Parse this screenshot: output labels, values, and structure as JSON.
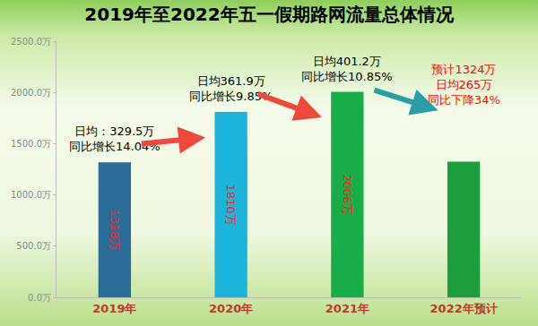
{
  "chart_data": {
    "type": "bar",
    "title": "2019年至2022年五一假期路网流量总体情况",
    "categories": [
      "2019年",
      "2020年",
      "2021年",
      "2022年预计"
    ],
    "values": [
      1318,
      1810,
      2006,
      1324
    ],
    "value_labels": [
      "1318万",
      "1810万",
      "2006万",
      null
    ],
    "colors": [
      "#2b6d99",
      "#1db4dc",
      "#19ad49",
      "#1c9e3e"
    ],
    "ylim": [
      0,
      2500
    ],
    "yticks": [
      {
        "value": 0,
        "label": "0.0万"
      },
      {
        "value": 500,
        "label": "500.0万"
      },
      {
        "value": 1000,
        "label": "1000.0万"
      },
      {
        "value": 1500,
        "label": "1500.0万"
      },
      {
        "value": 2000,
        "label": "2000.0万"
      },
      {
        "value": 2500,
        "label": "2500.0万"
      }
    ],
    "data_labels": true,
    "grid": false,
    "annotations": [
      {
        "category": "2019年",
        "text": "日均：329.5万\n同比增长14.04%",
        "color": "#000000"
      },
      {
        "category": "2020年",
        "text": "日均361.9万\n同比增长9.85%",
        "color": "#000000"
      },
      {
        "category": "2021年",
        "text": "日均401.2万\n同比增长10.85%",
        "color": "#000000"
      },
      {
        "category": "2022年预计",
        "text": "预计1324万\n日均265万\n同比下降34%",
        "color": "#ff0000"
      }
    ]
  }
}
